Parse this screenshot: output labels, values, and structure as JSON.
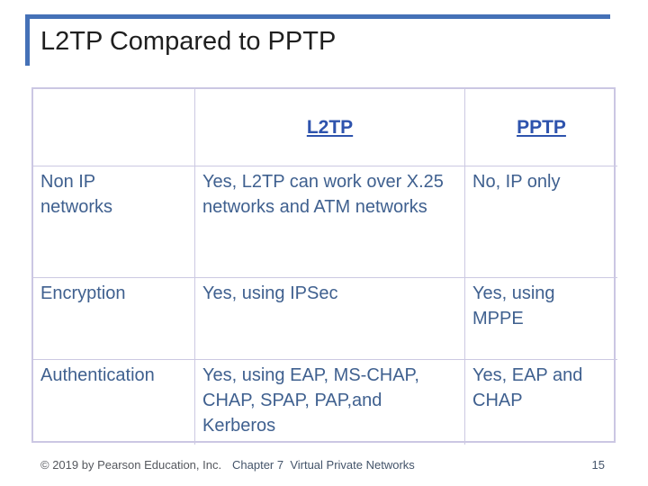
{
  "slide": {
    "title": "L2TP Compared to PPTP",
    "accent_color": "#4571B7",
    "table_border_color": "#CCC9E2",
    "header_text_color": "#2E53AD",
    "body_text_color": "#3F608F"
  },
  "table": {
    "headers": [
      "",
      "L2TP",
      "PPTP"
    ],
    "rows": [
      {
        "feature": "Non IP networks",
        "l2tp": "Yes, L2TP can work over X.25 networks and ATM networks",
        "pptp": "No, IP only"
      },
      {
        "feature": "Encryption",
        "l2tp": "Yes, using IPSec",
        "pptp": "Yes, using MPPE"
      },
      {
        "feature": "Authentication",
        "l2tp": "Yes, using EAP, MS-CHAP, CHAP, SPAP, PAP,and Kerberos",
        "pptp": "Yes, EAP and CHAP"
      }
    ]
  },
  "footer": {
    "copyright": "© 2019 by Pearson Education, Inc.",
    "chapter": "Chapter 7  Virtual Private Networks",
    "page_number": "15"
  }
}
